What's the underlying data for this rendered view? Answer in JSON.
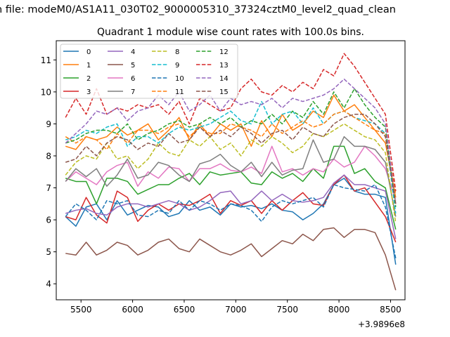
{
  "suptitle": "n file: modeM0/AS1A11_030T02_9000005310_37324cztM0_level2_quad_clean",
  "chart_data": {
    "type": "line",
    "title": "Quadrant 1 module wise count rates with 100.0s bins.",
    "xlabel": "",
    "ylabel": "",
    "x_offset_label": "+3.9896e8",
    "x_offset": 398960000,
    "xlim": [
      5260,
      8640
    ],
    "ylim": [
      3.5,
      11.6
    ],
    "xticks": [
      5500,
      6000,
      6500,
      7000,
      7500,
      8000,
      8500
    ],
    "yticks": [
      4,
      5,
      6,
      7,
      8,
      9,
      10,
      11
    ],
    "grid": false,
    "legend_placement": "top-left",
    "x": [
      5350,
      5450,
      5550,
      5650,
      5750,
      5850,
      5950,
      6050,
      6150,
      6250,
      6350,
      6450,
      6550,
      6650,
      6750,
      6850,
      6950,
      7050,
      7150,
      7250,
      7350,
      7450,
      7550,
      7650,
      7750,
      7850,
      7950,
      8050,
      8150,
      8250,
      8350,
      8450,
      8550
    ],
    "series": [
      {
        "name": "0",
        "color": "#1f77b4",
        "dash": "solid",
        "values": [
          6.1,
          5.8,
          6.4,
          6.5,
          6.0,
          6.6,
          6.15,
          6.3,
          6.45,
          6.4,
          6.1,
          6.2,
          6.6,
          6.3,
          6.4,
          6.15,
          6.5,
          6.4,
          6.45,
          6.35,
          6.5,
          6.3,
          6.25,
          6.0,
          6.2,
          6.5,
          7.1,
          7.3,
          6.9,
          6.8,
          6.8,
          6.7,
          4.6
        ]
      },
      {
        "name": "1",
        "color": "#ff7f0e",
        "dash": "solid",
        "values": [
          8.3,
          8.2,
          8.6,
          8.5,
          8.6,
          8.9,
          8.65,
          8.8,
          9.0,
          8.5,
          8.8,
          9.2,
          8.5,
          9.0,
          8.6,
          9.0,
          8.8,
          9.0,
          8.3,
          9.1,
          8.6,
          9.3,
          8.8,
          9.0,
          9.4,
          9.2,
          9.9,
          9.4,
          9.6,
          9.2,
          8.8,
          8.4,
          6.7
        ]
      },
      {
        "name": "2",
        "color": "#2ca02c",
        "dash": "solid",
        "values": [
          7.3,
          7.2,
          7.2,
          6.5,
          7.3,
          7.3,
          7.2,
          6.8,
          6.95,
          7.1,
          7.1,
          7.3,
          7.45,
          7.1,
          7.5,
          7.4,
          7.45,
          7.5,
          7.15,
          7.1,
          7.5,
          7.3,
          7.45,
          7.2,
          7.6,
          7.3,
          8.3,
          8.3,
          7.45,
          7.6,
          7.2,
          7.0,
          5.7
        ]
      },
      {
        "name": "3",
        "color": "#d62728",
        "dash": "solid",
        "values": [
          6.1,
          6.0,
          6.7,
          6.15,
          5.9,
          6.9,
          6.7,
          5.95,
          6.3,
          6.5,
          6.3,
          6.5,
          6.45,
          6.6,
          6.8,
          6.2,
          6.6,
          6.45,
          6.6,
          6.2,
          6.6,
          6.3,
          6.6,
          6.85,
          6.5,
          6.45,
          7.1,
          7.4,
          6.9,
          7.0,
          6.55,
          6.1,
          5.3
        ]
      },
      {
        "name": "4",
        "color": "#9467bd",
        "dash": "solid",
        "values": [
          6.2,
          6.3,
          6.35,
          6.2,
          6.15,
          6.4,
          6.5,
          6.5,
          6.4,
          6.5,
          6.6,
          6.5,
          6.3,
          6.4,
          6.6,
          6.85,
          6.9,
          6.5,
          6.6,
          6.9,
          6.6,
          6.8,
          6.6,
          6.55,
          6.6,
          6.7,
          7.15,
          7.4,
          7.1,
          7.1,
          7.0,
          6.9,
          5.4
        ]
      },
      {
        "name": "5",
        "color": "#8c564b",
        "dash": "solid",
        "values": [
          4.95,
          4.9,
          5.3,
          4.9,
          5.05,
          5.3,
          5.2,
          4.9,
          5.05,
          5.3,
          5.4,
          5.1,
          5.0,
          5.4,
          5.2,
          5.0,
          4.9,
          5.05,
          5.25,
          4.85,
          5.1,
          5.35,
          5.25,
          5.55,
          5.35,
          5.7,
          5.75,
          5.45,
          5.7,
          5.7,
          5.6,
          4.9,
          3.8
        ]
      },
      {
        "name": "6",
        "color": "#e377c2",
        "dash": "solid",
        "values": [
          7.2,
          7.5,
          7.3,
          7.1,
          7.5,
          7.7,
          7.8,
          7.05,
          7.5,
          7.3,
          7.65,
          7.6,
          7.2,
          7.6,
          7.6,
          7.75,
          7.55,
          7.5,
          7.65,
          7.45,
          8.3,
          7.5,
          7.6,
          7.4,
          7.6,
          7.5,
          7.9,
          7.65,
          7.8,
          8.3,
          8.0,
          7.6,
          6.6
        ]
      },
      {
        "name": "7",
        "color": "#7f7f7f",
        "dash": "solid",
        "values": [
          7.2,
          7.6,
          7.35,
          7.6,
          7.05,
          7.4,
          7.9,
          7.3,
          7.4,
          7.8,
          7.7,
          7.4,
          7.2,
          7.75,
          7.85,
          8.05,
          7.7,
          7.5,
          7.8,
          7.35,
          7.8,
          7.4,
          7.55,
          7.6,
          8.5,
          7.8,
          7.9,
          8.6,
          8.3,
          8.3,
          8.2,
          7.8,
          6.1
        ]
      },
      {
        "name": "8",
        "color": "#bcbd22",
        "dash": "dashed",
        "values": [
          7.4,
          7.8,
          8.0,
          7.9,
          8.4,
          7.9,
          8.0,
          7.6,
          7.9,
          8.4,
          8.1,
          8.0,
          8.5,
          8.3,
          8.6,
          8.2,
          8.4,
          8.0,
          8.5,
          8.3,
          8.6,
          8.4,
          8.1,
          8.3,
          8.7,
          8.6,
          8.8,
          9.0,
          8.8,
          8.6,
          8.5,
          8.1,
          5.9
        ]
      },
      {
        "name": "9",
        "color": "#17becf",
        "dash": "dashed",
        "values": [
          8.5,
          8.6,
          8.8,
          8.7,
          8.9,
          9.0,
          8.3,
          8.6,
          8.6,
          8.4,
          8.7,
          8.9,
          8.8,
          8.9,
          9.0,
          9.2,
          9.4,
          9.1,
          9.0,
          9.7,
          9.0,
          9.3,
          9.4,
          9.0,
          9.5,
          9.0,
          9.3,
          9.4,
          9.2,
          9.1,
          9.0,
          8.7,
          6.2
        ]
      },
      {
        "name": "10",
        "color": "#1f77b4",
        "dash": "dashed",
        "values": [
          6.1,
          6.5,
          6.3,
          6.0,
          6.6,
          6.5,
          6.6,
          6.15,
          6.1,
          6.3,
          6.2,
          6.6,
          6.3,
          6.6,
          6.5,
          6.3,
          6.5,
          6.45,
          6.3,
          5.95,
          6.4,
          6.6,
          6.5,
          6.6,
          6.7,
          6.4,
          7.1,
          7.0,
          6.95,
          6.9,
          7.1,
          6.4,
          4.8
        ]
      },
      {
        "name": "11",
        "color": "#ff7f0e",
        "dash": "dashed",
        "values": [
          8.6,
          8.4,
          8.6,
          8.5,
          8.2,
          8.7,
          8.4,
          8.8,
          8.8,
          8.7,
          8.9,
          9.0,
          8.6,
          8.9,
          8.7,
          8.7,
          9.0,
          8.9,
          8.8,
          8.6,
          9.0,
          8.7,
          8.9,
          9.1,
          8.9,
          9.0,
          9.3,
          9.4,
          9.2,
          9.0,
          8.8,
          8.7,
          6.8
        ]
      },
      {
        "name": "12",
        "color": "#2ca02c",
        "dash": "dashed",
        "values": [
          8.4,
          8.5,
          8.7,
          8.8,
          8.8,
          8.7,
          9.0,
          8.5,
          8.7,
          8.8,
          9.0,
          9.1,
          8.9,
          9.0,
          9.2,
          9.0,
          9.2,
          8.9,
          9.1,
          9.0,
          9.3,
          9.0,
          9.4,
          9.2,
          9.7,
          9.3,
          10.0,
          9.5,
          10.1,
          9.6,
          9.2,
          8.9,
          6.4
        ]
      },
      {
        "name": "13",
        "color": "#d62728",
        "dash": "dashed",
        "values": [
          9.2,
          9.8,
          9.3,
          10.1,
          9.3,
          9.5,
          9.4,
          9.6,
          9.5,
          9.6,
          9.3,
          9.7,
          9.0,
          9.8,
          9.6,
          9.4,
          9.5,
          10.1,
          10.4,
          10.0,
          9.9,
          10.2,
          10.0,
          10.3,
          10.1,
          10.7,
          10.5,
          11.2,
          10.8,
          10.3,
          9.8,
          9.3,
          6.9
        ]
      },
      {
        "name": "14",
        "color": "#9467bd",
        "dash": "dashed",
        "values": [
          8.4,
          8.7,
          9.0,
          9.4,
          9.3,
          9.5,
          9.1,
          9.4,
          9.5,
          9.9,
          9.6,
          10.0,
          9.4,
          9.6,
          9.9,
          9.4,
          9.8,
          9.6,
          9.7,
          9.6,
          9.8,
          9.5,
          9.8,
          9.7,
          9.8,
          9.9,
          10.1,
          10.4,
          10.1,
          9.8,
          9.5,
          9.0,
          6.5
        ]
      },
      {
        "name": "15",
        "color": "#8c564b",
        "dash": "dashed",
        "values": [
          7.8,
          7.9,
          8.3,
          8.0,
          8.4,
          8.6,
          8.5,
          8.2,
          8.4,
          8.3,
          8.7,
          8.4,
          8.5,
          8.9,
          8.6,
          8.8,
          8.6,
          8.9,
          8.7,
          8.4,
          8.7,
          8.8,
          8.5,
          8.9,
          8.7,
          8.6,
          9.0,
          9.2,
          9.3,
          9.3,
          9.0,
          8.6,
          6.5
        ]
      }
    ]
  }
}
